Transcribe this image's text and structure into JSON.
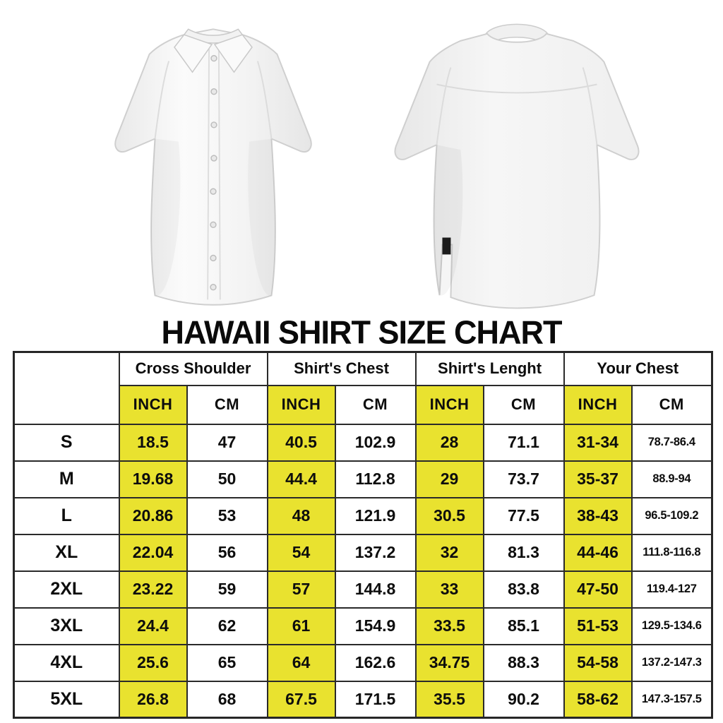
{
  "title": "HAWAII SHIRT SIZE CHART",
  "images": {
    "front_shirt_alt": "white short-sleeve button-up shirt, front view",
    "back_shirt_alt": "white short-sleeve shirt, back view with small black side tag"
  },
  "colors": {
    "highlight_yellow": "#e9e22f",
    "table_border": "#2a2a2a",
    "text": "#0d0d0d",
    "background": "#ffffff"
  },
  "table": {
    "groups": [
      {
        "label": "Cross Shoulder"
      },
      {
        "label": "Shirt's Chest"
      },
      {
        "label": "Shirt's Lenght"
      },
      {
        "label": "Your Chest"
      }
    ],
    "unit_headers": [
      "INCH",
      "CM"
    ],
    "rows": [
      {
        "size": "S",
        "values": [
          "18.5",
          "47",
          "40.5",
          "102.9",
          "28",
          "71.1",
          "31-34",
          "78.7-86.4"
        ]
      },
      {
        "size": "M",
        "values": [
          "19.68",
          "50",
          "44.4",
          "112.8",
          "29",
          "73.7",
          "35-37",
          "88.9-94"
        ]
      },
      {
        "size": "L",
        "values": [
          "20.86",
          "53",
          "48",
          "121.9",
          "30.5",
          "77.5",
          "38-43",
          "96.5-109.2"
        ]
      },
      {
        "size": "XL",
        "values": [
          "22.04",
          "56",
          "54",
          "137.2",
          "32",
          "81.3",
          "44-46",
          "111.8-116.8"
        ]
      },
      {
        "size": "2XL",
        "values": [
          "23.22",
          "59",
          "57",
          "144.8",
          "33",
          "83.8",
          "47-50",
          "119.4-127"
        ]
      },
      {
        "size": "3XL",
        "values": [
          "24.4",
          "62",
          "61",
          "154.9",
          "33.5",
          "85.1",
          "51-53",
          "129.5-134.6"
        ]
      },
      {
        "size": "4XL",
        "values": [
          "25.6",
          "65",
          "64",
          "162.6",
          "34.75",
          "88.3",
          "54-58",
          "137.2-147.3"
        ]
      },
      {
        "size": "5XL",
        "values": [
          "26.8",
          "68",
          "67.5",
          "171.5",
          "35.5",
          "90.2",
          "58-62",
          "147.3-157.5"
        ]
      }
    ]
  }
}
